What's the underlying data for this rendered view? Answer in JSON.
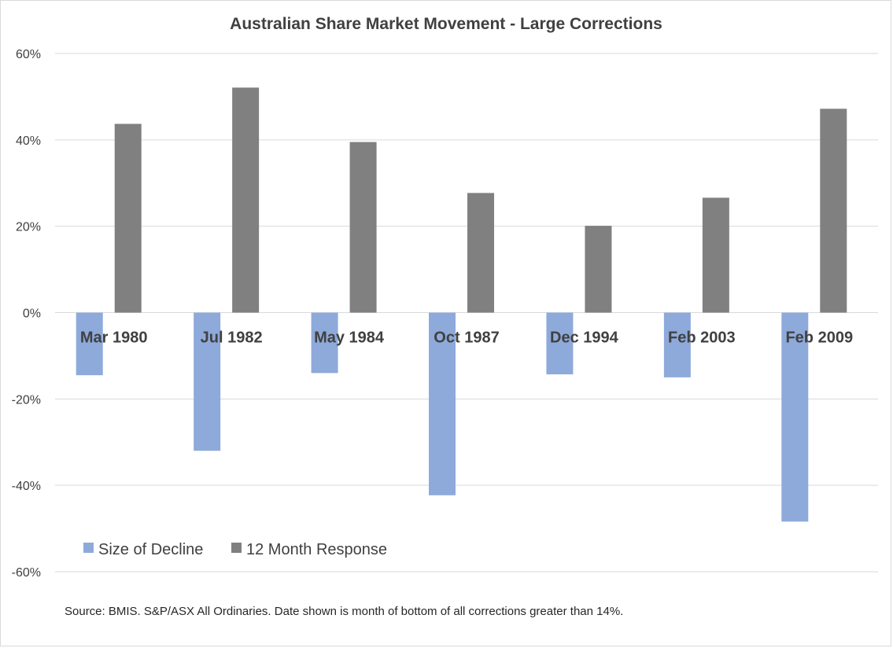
{
  "chart_data": {
    "type": "bar",
    "title": "Australian Share Market Movement - Large Corrections",
    "xlabel": "",
    "ylabel": "",
    "categories": [
      "Mar 1980",
      "Jul 1982",
      "May 1984",
      "Oct 1987",
      "Dec 1994",
      "Feb 2003",
      "Feb 2009"
    ],
    "series": [
      {
        "name": "Size of Decline",
        "color": "#8eaadb",
        "values": [
          -14.5,
          -32,
          -14,
          -42.3,
          -14.3,
          -15,
          -48.4
        ]
      },
      {
        "name": "12 Month Response",
        "color": "#808080",
        "values": [
          43.7,
          52.1,
          39.5,
          27.7,
          20.1,
          26.6,
          47.2
        ]
      }
    ],
    "ylim": [
      -60,
      60
    ],
    "yticks": [
      60,
      40,
      20,
      0,
      -20,
      -40,
      -60
    ],
    "ytick_labels": [
      "60%",
      "40%",
      "20%",
      "0%",
      "-20%",
      "-40%",
      "-60%"
    ],
    "grid": true,
    "legend_position": "bottom-left",
    "source_note": "Source: BMIS. S&P/ASX All Ordinaries. Date shown is month of bottom of all corrections greater than 14%."
  }
}
